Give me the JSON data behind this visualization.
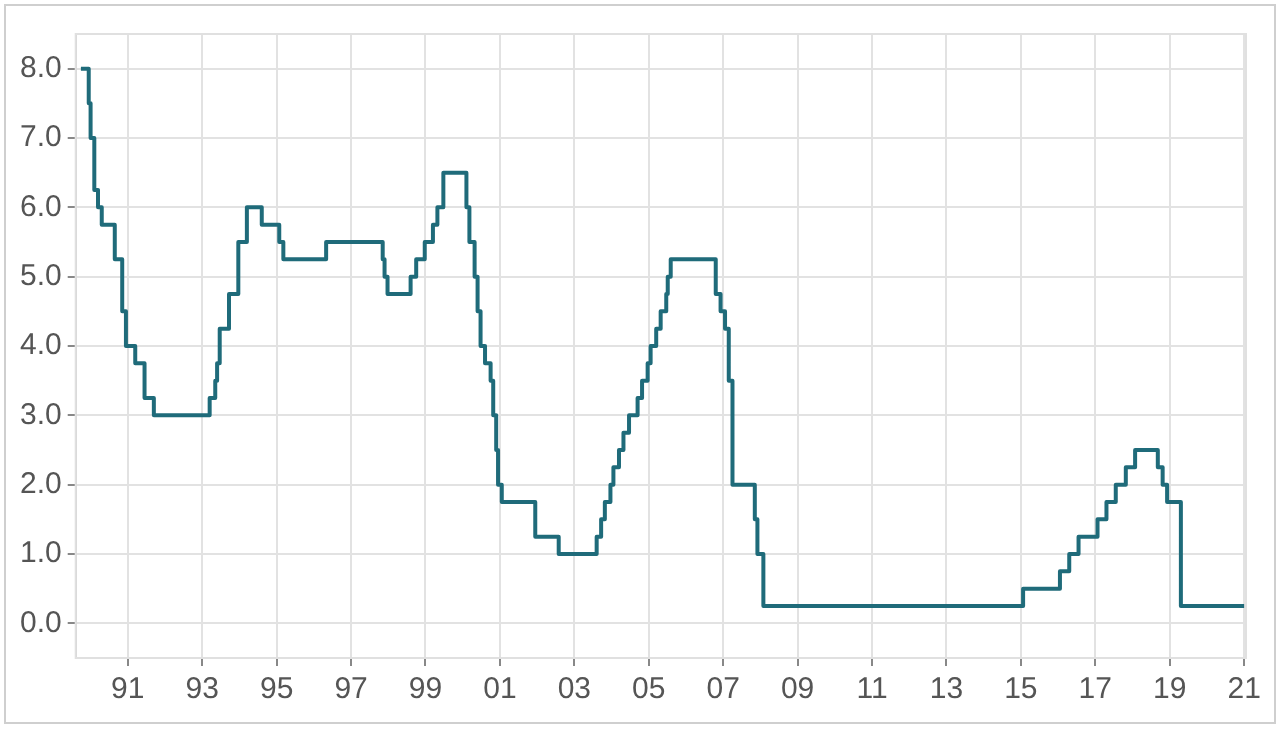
{
  "chart_data": {
    "type": "step",
    "color": "#1f6b7a",
    "x": [
      1989.74,
      1989.95,
      1990.0,
      1990.1,
      1990.2,
      1990.3,
      1990.65,
      1990.85,
      1990.95,
      1991.2,
      1991.45,
      1991.7,
      1993.2,
      1993.35,
      1993.4,
      1993.47,
      1993.72,
      1993.97,
      1994.2,
      1994.6,
      1995.07,
      1995.18,
      1996.33,
      1997.85,
      1997.9,
      1997.98,
      1998.6,
      1998.75,
      1998.98,
      1999.2,
      1999.32,
      1999.48,
      2000.1,
      2000.18,
      2000.32,
      2000.4,
      2000.48,
      2000.6,
      2000.75,
      2000.82,
      2000.9,
      2000.95,
      2001.05,
      2001.95,
      2002.58,
      2003.6,
      2003.72,
      2003.82,
      2003.97,
      2004.05,
      2004.2,
      2004.32,
      2004.47,
      2004.7,
      2004.82,
      2004.97,
      2005.05,
      2005.2,
      2005.32,
      2005.47,
      2005.51,
      2005.59,
      2006.8,
      2006.93,
      2007.05,
      2007.15,
      2007.25,
      2007.85,
      2007.92,
      2008.08,
      2015.06,
      2016.05,
      2016.3,
      2016.55,
      2017.06,
      2017.3,
      2017.55,
      2017.82,
      2018.07,
      2018.68,
      2018.81,
      2018.93,
      2019.3,
      2021.0
    ],
    "values": [
      8.0,
      7.5,
      7.0,
      6.25,
      6.0,
      5.75,
      5.25,
      4.5,
      4.0,
      3.75,
      3.25,
      3.0,
      3.25,
      3.5,
      3.75,
      4.25,
      4.75,
      5.5,
      6.0,
      5.75,
      5.5,
      5.25,
      5.5,
      5.25,
      5.0,
      4.75,
      5.0,
      5.25,
      5.5,
      5.75,
      6.0,
      6.5,
      6.0,
      5.5,
      5.0,
      4.5,
      4.0,
      3.75,
      3.5,
      3.0,
      2.5,
      2.0,
      1.75,
      1.25,
      1.0,
      1.25,
      1.5,
      1.75,
      2.0,
      2.25,
      2.5,
      2.75,
      3.0,
      3.25,
      3.5,
      3.75,
      4.0,
      4.25,
      4.5,
      4.75,
      5.0,
      5.25,
      4.75,
      4.5,
      4.25,
      3.5,
      2.0,
      1.5,
      1.0,
      0.25,
      0.5,
      0.75,
      1.0,
      1.25,
      1.5,
      1.75,
      2.0,
      2.25,
      2.5,
      2.25,
      2.0,
      1.75,
      0.25,
      0.25
    ],
    "xlim": [
      1989.6,
      2021.05
    ],
    "xticks": [
      {
        "value": 1991,
        "label": "91"
      },
      {
        "value": 1993,
        "label": "93"
      },
      {
        "value": 1995,
        "label": "95"
      },
      {
        "value": 1997,
        "label": "97"
      },
      {
        "value": 1999,
        "label": "99"
      },
      {
        "value": 2001,
        "label": "01"
      },
      {
        "value": 2003,
        "label": "03"
      },
      {
        "value": 2005,
        "label": "05"
      },
      {
        "value": 2007,
        "label": "07"
      },
      {
        "value": 2009,
        "label": "09"
      },
      {
        "value": 2011,
        "label": "11"
      },
      {
        "value": 2013,
        "label": "13"
      },
      {
        "value": 2015,
        "label": "15"
      },
      {
        "value": 2017,
        "label": "17"
      },
      {
        "value": 2019,
        "label": "19"
      },
      {
        "value": 2021,
        "label": "21"
      }
    ],
    "ylim": [
      -0.5,
      8.5
    ],
    "yticks": [
      {
        "value": 0,
        "label": "0.0"
      },
      {
        "value": 1,
        "label": "1.0"
      },
      {
        "value": 2,
        "label": "2.0"
      },
      {
        "value": 3,
        "label": "3.0"
      },
      {
        "value": 4,
        "label": "4.0"
      },
      {
        "value": 5,
        "label": "5.0"
      },
      {
        "value": 6,
        "label": "6.0"
      },
      {
        "value": 7,
        "label": "7.0"
      },
      {
        "value": 8,
        "label": "8.0"
      }
    ],
    "grid": true,
    "legend": false,
    "marker": "none",
    "line_style": "solid"
  }
}
